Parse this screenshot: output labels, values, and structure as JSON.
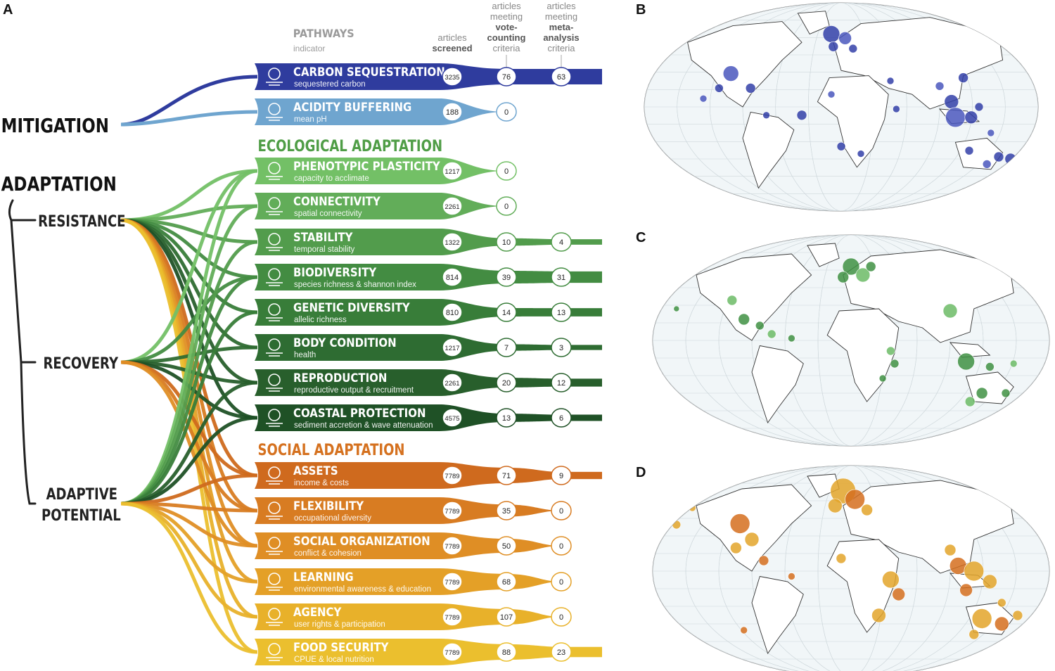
{
  "panel_labels": [
    "A",
    "B",
    "C",
    "D"
  ],
  "headers": {
    "pathways": "PATHWAYS",
    "indicator": "indicator",
    "screened": [
      "articles",
      "screened"
    ],
    "vote": [
      "articles",
      "meeting",
      "vote-",
      "counting",
      "criteria"
    ],
    "meta": [
      "articles",
      "meeting",
      "meta-",
      "analysis",
      "criteria"
    ]
  },
  "left_labels": {
    "mitigation": "MITIGATION",
    "adaptation": "ADAPTATION",
    "resistance": "RESISTANCE",
    "recovery": "RECOVERY",
    "adaptive_potential": [
      "ADAPTIVE",
      "POTENTIAL"
    ]
  },
  "section_titles": {
    "ecological": "ECOLOGICAL ADAPTATION",
    "social": "SOCIAL ADAPTATION"
  },
  "colors": {
    "mitigation_dark": "#2f3c9e",
    "mitigation_light": "#6fa5cf",
    "eco_section": "#4f9d46",
    "social_section": "#d5711f",
    "map_ocean": "#f1f6f8",
    "map_land": "#ffffff"
  },
  "pathways": [
    {
      "group": "mitigation",
      "title": "CARBON SEQUESTRATION",
      "subtitle": "sequestered carbon",
      "icon": "co2-cloud-icon",
      "color": "#2f3c9e",
      "screened": "3235",
      "vote": "76",
      "meta": "63"
    },
    {
      "group": "mitigation",
      "title": "ACIDITY BUFFERING",
      "subtitle": "mean pH",
      "icon": "shell-bubbles-icon",
      "color": "#6fa5cf",
      "screened": "188",
      "vote": "0",
      "meta": null
    },
    {
      "group": "ecological",
      "title": "PHENOTYPIC PLASTICITY",
      "subtitle": "capacity to acclimate",
      "icon": "fish-coral-icon",
      "color": "#73c066",
      "screened": "1217",
      "vote": "0",
      "meta": null
    },
    {
      "group": "ecological",
      "title": "CONNECTIVITY",
      "subtitle": "spatial connectivity",
      "icon": "network-nodes-icon",
      "color": "#62ad59",
      "screened": "2261",
      "vote": "0",
      "meta": null
    },
    {
      "group": "ecological",
      "title": "STABILITY",
      "subtitle": "temporal stability",
      "icon": "trend-line-icon",
      "color": "#529c4c",
      "screened": "1322",
      "vote": "10",
      "meta": "4"
    },
    {
      "group": "ecological",
      "title": "BIODIVERSITY",
      "subtitle": "species richness & shannon index",
      "icon": "shapes-icon",
      "color": "#438c42",
      "screened": "814",
      "vote": "39",
      "meta": "31"
    },
    {
      "group": "ecological",
      "title": "GENETIC DIVERSITY",
      "subtitle": "allelic richness",
      "icon": "dna-coral-icon",
      "color": "#387d39",
      "screened": "810",
      "vote": "14",
      "meta": "13"
    },
    {
      "group": "ecological",
      "title": "BODY CONDITION",
      "subtitle": "health",
      "icon": "fish-heart-icon",
      "color": "#2e6c32",
      "screened": "1217",
      "vote": "7",
      "meta": "3"
    },
    {
      "group": "ecological",
      "title": "REPRODUCTION",
      "subtitle": "reproductive output & recruitment",
      "icon": "family-tree-icon",
      "color": "#285f2c",
      "screened": "2261",
      "vote": "20",
      "meta": "12"
    },
    {
      "group": "ecological",
      "title": "COASTAL PROTECTION",
      "subtitle": "sediment accretion & wave attenuation",
      "icon": "wave-coast-icon",
      "color": "#1f5126",
      "screened": "4575",
      "vote": "13",
      "meta": "6"
    },
    {
      "group": "social",
      "title": "ASSETS",
      "subtitle": "income & costs",
      "icon": "fishing-boat-icon",
      "color": "#cf6a1e",
      "screened": "7789",
      "vote": "71",
      "meta": "9"
    },
    {
      "group": "social",
      "title": "FLEXIBILITY",
      "subtitle": "occupational diversity",
      "icon": "worker-icon",
      "color": "#d87c22",
      "screened": "7789",
      "vote": "35",
      "meta": "0"
    },
    {
      "group": "social",
      "title": "SOCIAL ORGANIZATION",
      "subtitle": "conflict & cohesion",
      "icon": "people-network-icon",
      "color": "#df8e25",
      "screened": "7789",
      "vote": "50",
      "meta": "0"
    },
    {
      "group": "social",
      "title": "LEARNING",
      "subtitle": "environmental awareness & education",
      "icon": "hand-info-icon",
      "color": "#e4a027",
      "screened": "7789",
      "vote": "68",
      "meta": "0"
    },
    {
      "group": "social",
      "title": "AGENCY",
      "subtitle": "user rights & participation",
      "icon": "person-arms-up-icon",
      "color": "#e8b12a",
      "screened": "7789",
      "vote": "107",
      "meta": "0"
    },
    {
      "group": "social",
      "title": "FOOD SECURITY",
      "subtitle": "CPUE & local nutrition",
      "icon": "fish-market-icon",
      "color": "#ebbf2e",
      "screened": "7789",
      "vote": "88",
      "meta": "23"
    }
  ],
  "maps": [
    {
      "panel": "B",
      "theme": "mitigation",
      "dot_color": "#3340a8",
      "dot_color_alt": "#4a57bd"
    },
    {
      "panel": "C",
      "theme": "ecological adaptation",
      "dot_color": "#3f9143",
      "dot_color_alt": "#6cbb66"
    },
    {
      "panel": "D",
      "theme": "social adaptation",
      "dot_color": "#e3a52a",
      "dot_color_alt": "#d56f1f"
    }
  ]
}
